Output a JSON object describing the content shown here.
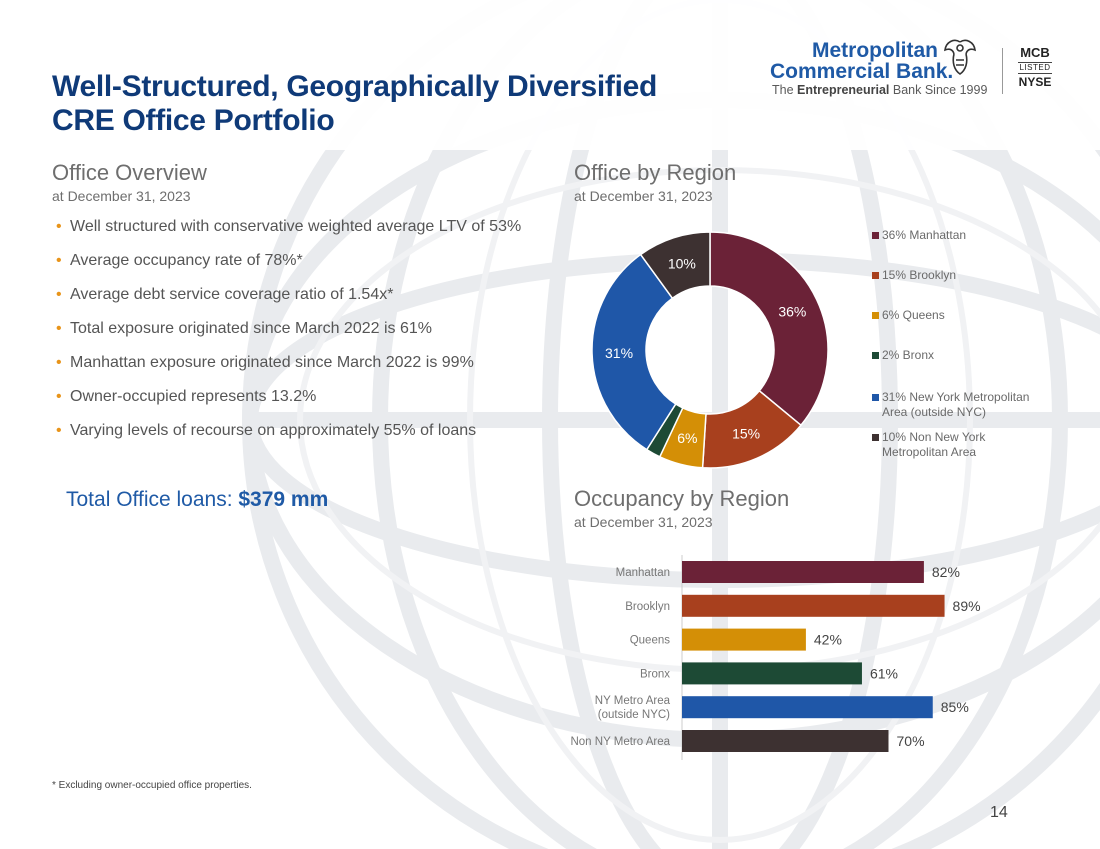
{
  "title": [
    "Well-Structured, Geographically Diversified",
    "CRE Office Portfolio"
  ],
  "logo": {
    "name_line1": "Metropolitan",
    "name_line2": "Commercial Bank.",
    "tagline_pre": "The ",
    "tagline_bold": "Entrepreneurial",
    "tagline_post": " Bank Since 1999",
    "ticker": "MCB",
    "listed": "LISTED",
    "exchange": "NYSE"
  },
  "overview": {
    "title": "Office  Overview",
    "subtitle": "at December 31, 2023",
    "bullets": [
      "Well structured with conservative weighted average LTV of 53%",
      "Average occupancy rate of 78%*",
      "Average debt service coverage ratio of 1.54x*",
      "Total exposure originated since March 2022 is 61%",
      "Manhattan exposure originated since March 2022 is 99%",
      "Owner-occupied represents 13.2%",
      "Varying levels of recourse on approximately 55% of loans"
    ],
    "total_label": "Total Office loans: ",
    "total_value": "$379 mm"
  },
  "region": {
    "title": "Office by Region",
    "subtitle": "at December 31, 2023"
  },
  "occupancy": {
    "title": "Occupancy by Region",
    "subtitle": "at December 31, 2023"
  },
  "footnote": "* Excluding owner-occupied office properties.",
  "page_number": "14",
  "chart_data": [
    {
      "type": "pie",
      "donut": true,
      "title": "Office by Region",
      "subtitle": "at December 31, 2023",
      "legend_position": "right",
      "slices": [
        {
          "label": "Manhattan",
          "value": 36,
          "data_label": "36%",
          "legend": "36% Manhattan",
          "color": "#6b2237"
        },
        {
          "label": "Brooklyn",
          "value": 15,
          "data_label": "15%",
          "legend": "15% Brooklyn",
          "color": "#a8401e"
        },
        {
          "label": "Queens",
          "value": 6,
          "data_label": "6%",
          "legend": "6% Queens",
          "color": "#d48f06"
        },
        {
          "label": "Bronx",
          "value": 2,
          "data_label": "",
          "legend": "2% Bronx",
          "color": "#1d4a35"
        },
        {
          "label": "New York Metropolitan Area (outside NYC)",
          "value": 31,
          "data_label": "31%",
          "legend": "31% New York Metropolitan Area (outside NYC)",
          "color": "#1f57a8"
        },
        {
          "label": "Non New York Metropolitan Area",
          "value": 10,
          "data_label": "10%",
          "legend": "10% Non New York Metropolitan Area",
          "color": "#3d3131"
        }
      ]
    },
    {
      "type": "bar",
      "orientation": "horizontal",
      "title": "Occupancy by Region",
      "subtitle": "at December 31, 2023",
      "categories": [
        "Manhattan",
        "Brooklyn",
        "Queens",
        "Bronx",
        "NY Metro Area\n(outside NYC)",
        "Non NY Metro Area"
      ],
      "values": [
        82,
        89,
        42,
        61,
        85,
        70
      ],
      "data_labels": [
        "82%",
        "89%",
        "42%",
        "61%",
        "85%",
        "70%"
      ],
      "colors": [
        "#6b2237",
        "#a8401e",
        "#d48f06",
        "#1d4a35",
        "#1f57a8",
        "#3d3131"
      ],
      "xlim": [
        0,
        100
      ],
      "grid": false
    }
  ]
}
